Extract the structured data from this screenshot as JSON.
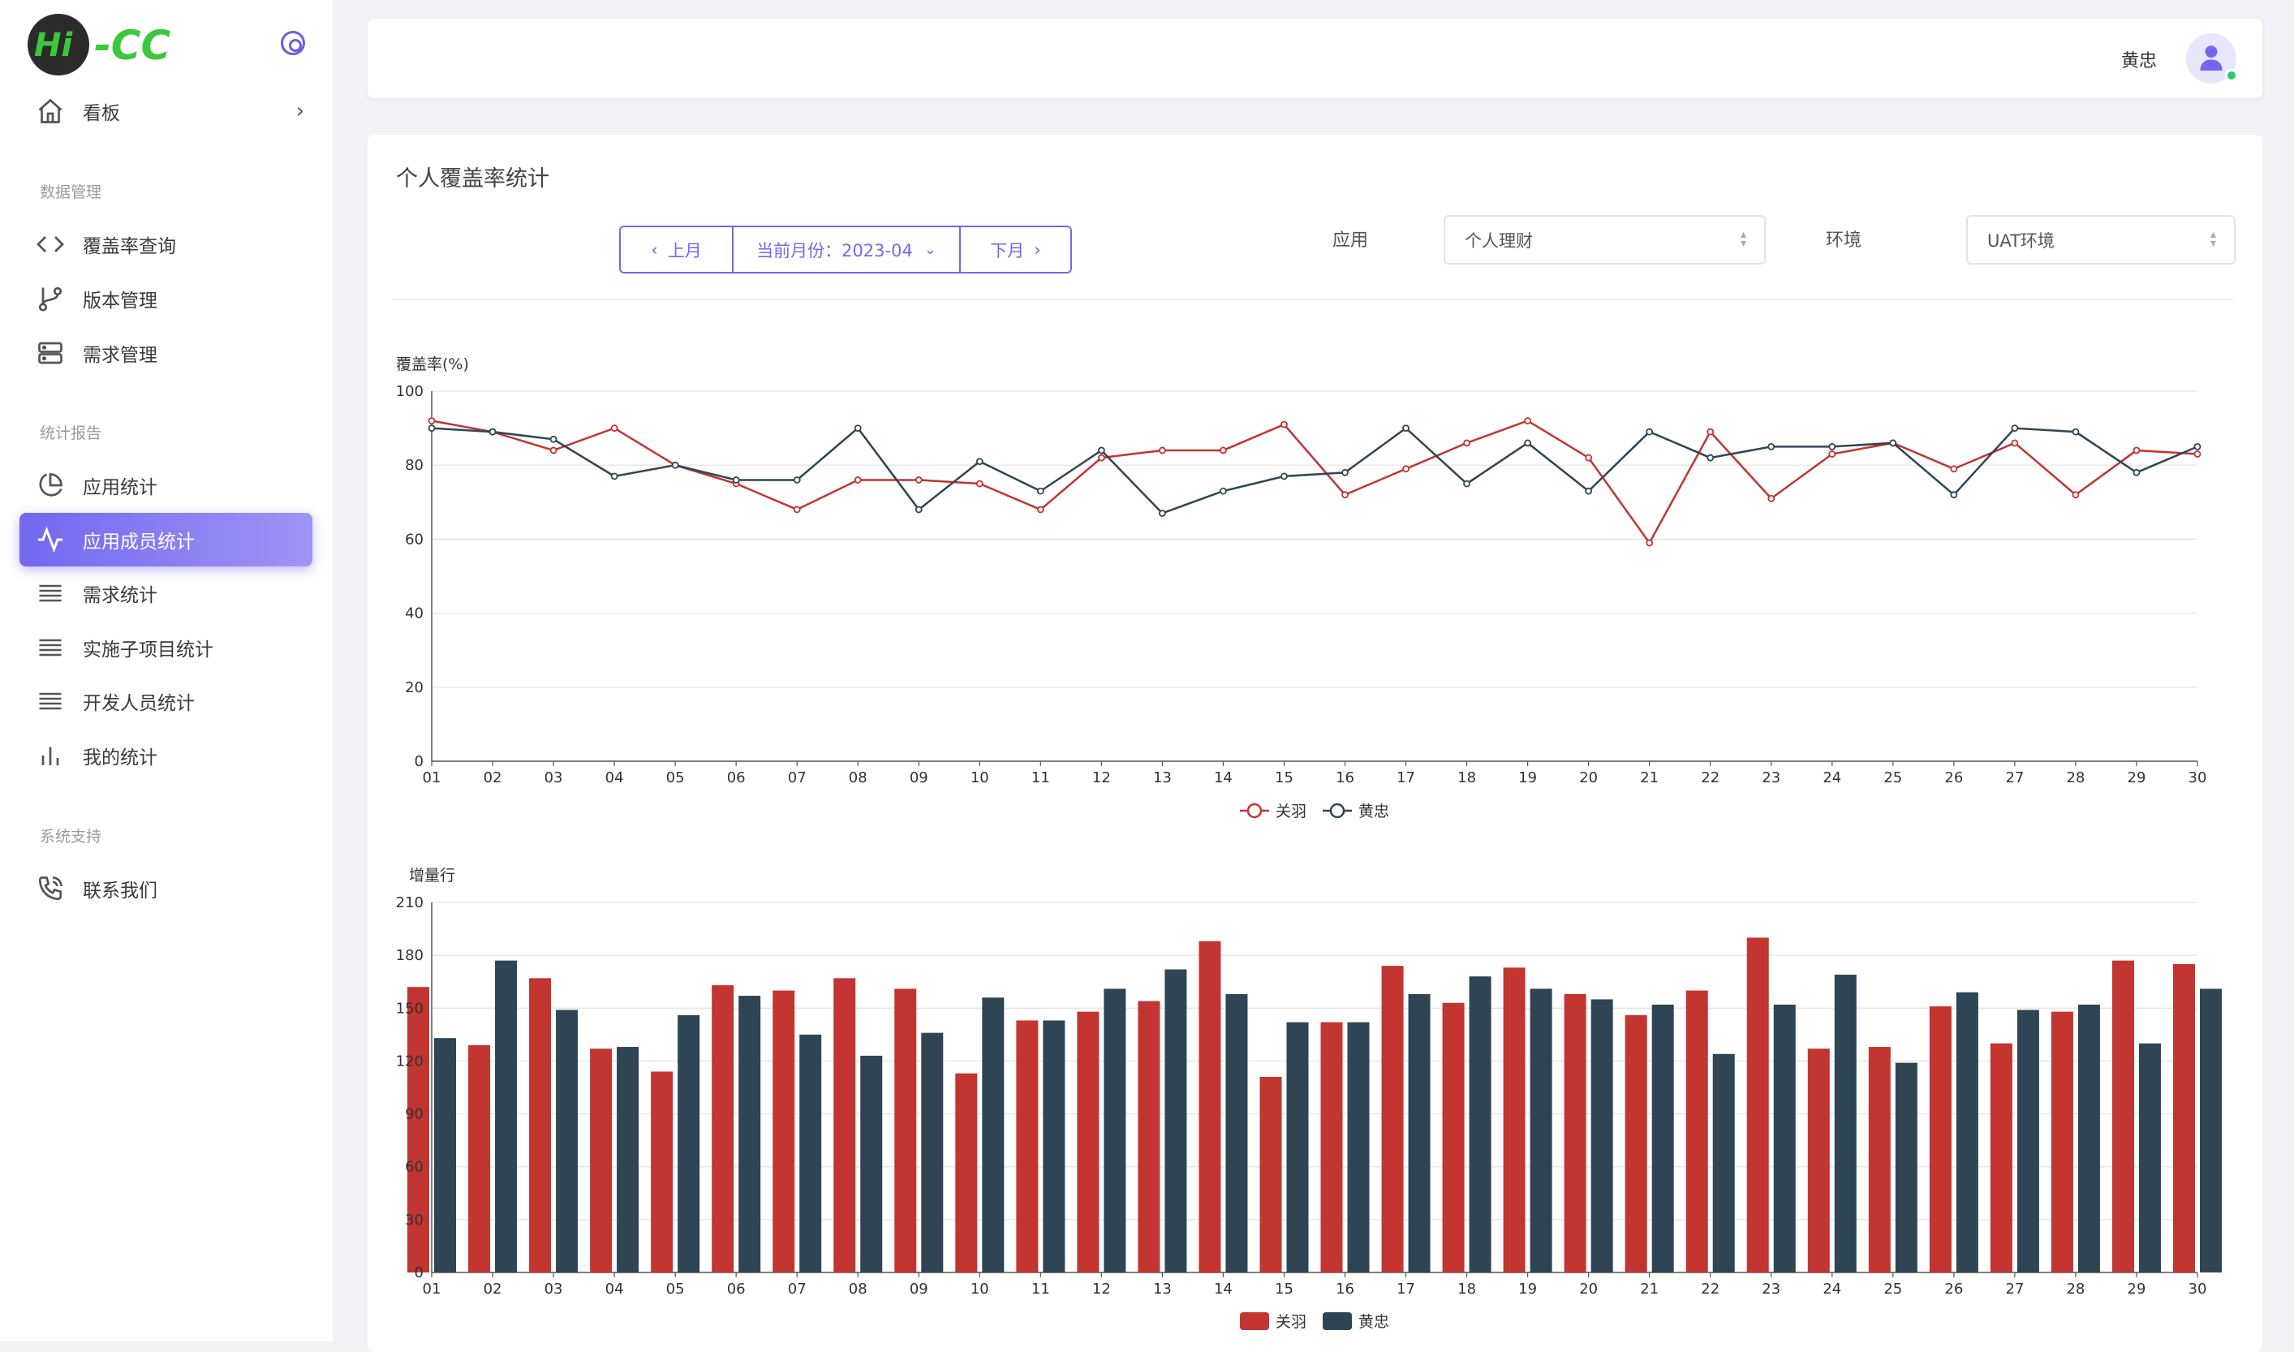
{
  "brand": {
    "logo_text_left": "Hi",
    "logo_text_right": "-CC"
  },
  "sidebar": {
    "dashboard": "看板",
    "sections": [
      {
        "title": "数据管理",
        "items": [
          "覆盖率查询",
          "版本管理",
          "需求管理"
        ]
      },
      {
        "title": "统计报告",
        "items": [
          "应用统计",
          "应用成员统计",
          "需求统计",
          "实施子项目统计",
          "开发人员统计",
          "我的统计"
        ]
      },
      {
        "title": "系统支持",
        "items": [
          "联系我们"
        ]
      }
    ],
    "active_item": "应用成员统计"
  },
  "header": {
    "user_name": "黄忠"
  },
  "main": {
    "title": "个人覆盖率统计",
    "prev_month": "上月",
    "current_month": "当前月份：2023-04",
    "next_month": "下月",
    "app_label": "应用",
    "app_value": "个人理财",
    "env_label": "环境",
    "env_value": "UAT环境"
  },
  "colors": {
    "accent": "#7367f0",
    "series1": "#c23531",
    "series2": "#2f4554",
    "online": "#28c76f"
  },
  "chart_data": [
    {
      "type": "line",
      "ylabel": "覆盖率(%)",
      "ylim": [
        0,
        100
      ],
      "yticks": [
        0,
        20,
        40,
        60,
        80,
        100
      ],
      "categories": [
        "01",
        "02",
        "03",
        "04",
        "05",
        "06",
        "07",
        "08",
        "09",
        "10",
        "11",
        "12",
        "13",
        "14",
        "15",
        "16",
        "17",
        "18",
        "19",
        "20",
        "21",
        "22",
        "23",
        "24",
        "25",
        "26",
        "27",
        "28",
        "29",
        "30"
      ],
      "series": [
        {
          "name": "关羽",
          "values": [
            92,
            89,
            84,
            90,
            80,
            75,
            68,
            76,
            76,
            75,
            68,
            82,
            84,
            84,
            91,
            72,
            79,
            86,
            92,
            82,
            59,
            89,
            71,
            83,
            86,
            79,
            86,
            72,
            84,
            83
          ]
        },
        {
          "name": "黄忠",
          "values": [
            90,
            89,
            87,
            77,
            80,
            76,
            76,
            90,
            68,
            81,
            73,
            84,
            67,
            73,
            77,
            78,
            90,
            75,
            86,
            73,
            89,
            82,
            85,
            85,
            86,
            72,
            90,
            89,
            78,
            85
          ]
        }
      ],
      "legend": "bottom-center",
      "grid": true
    },
    {
      "type": "bar",
      "ylabel": "增量行",
      "ylim": [
        0,
        210
      ],
      "yticks": [
        0,
        30,
        60,
        90,
        120,
        150,
        180,
        210
      ],
      "categories": [
        "01",
        "02",
        "03",
        "04",
        "05",
        "06",
        "07",
        "08",
        "09",
        "10",
        "11",
        "12",
        "13",
        "14",
        "15",
        "16",
        "17",
        "18",
        "19",
        "20",
        "21",
        "22",
        "23",
        "24",
        "25",
        "26",
        "27",
        "28",
        "29",
        "30"
      ],
      "series": [
        {
          "name": "关羽",
          "values": [
            162,
            129,
            167,
            127,
            114,
            163,
            160,
            167,
            161,
            113,
            143,
            148,
            154,
            188,
            111,
            142,
            174,
            153,
            173,
            158,
            146,
            160,
            190,
            127,
            128,
            151,
            130,
            148,
            177,
            175
          ]
        },
        {
          "name": "黄忠",
          "values": [
            133,
            177,
            149,
            128,
            146,
            157,
            135,
            123,
            136,
            156,
            143,
            161,
            172,
            158,
            142,
            142,
            158,
            168,
            161,
            155,
            152,
            124,
            152,
            169,
            119,
            159,
            149,
            152,
            130,
            161
          ]
        }
      ],
      "legend": "bottom-center",
      "grid": true
    }
  ]
}
